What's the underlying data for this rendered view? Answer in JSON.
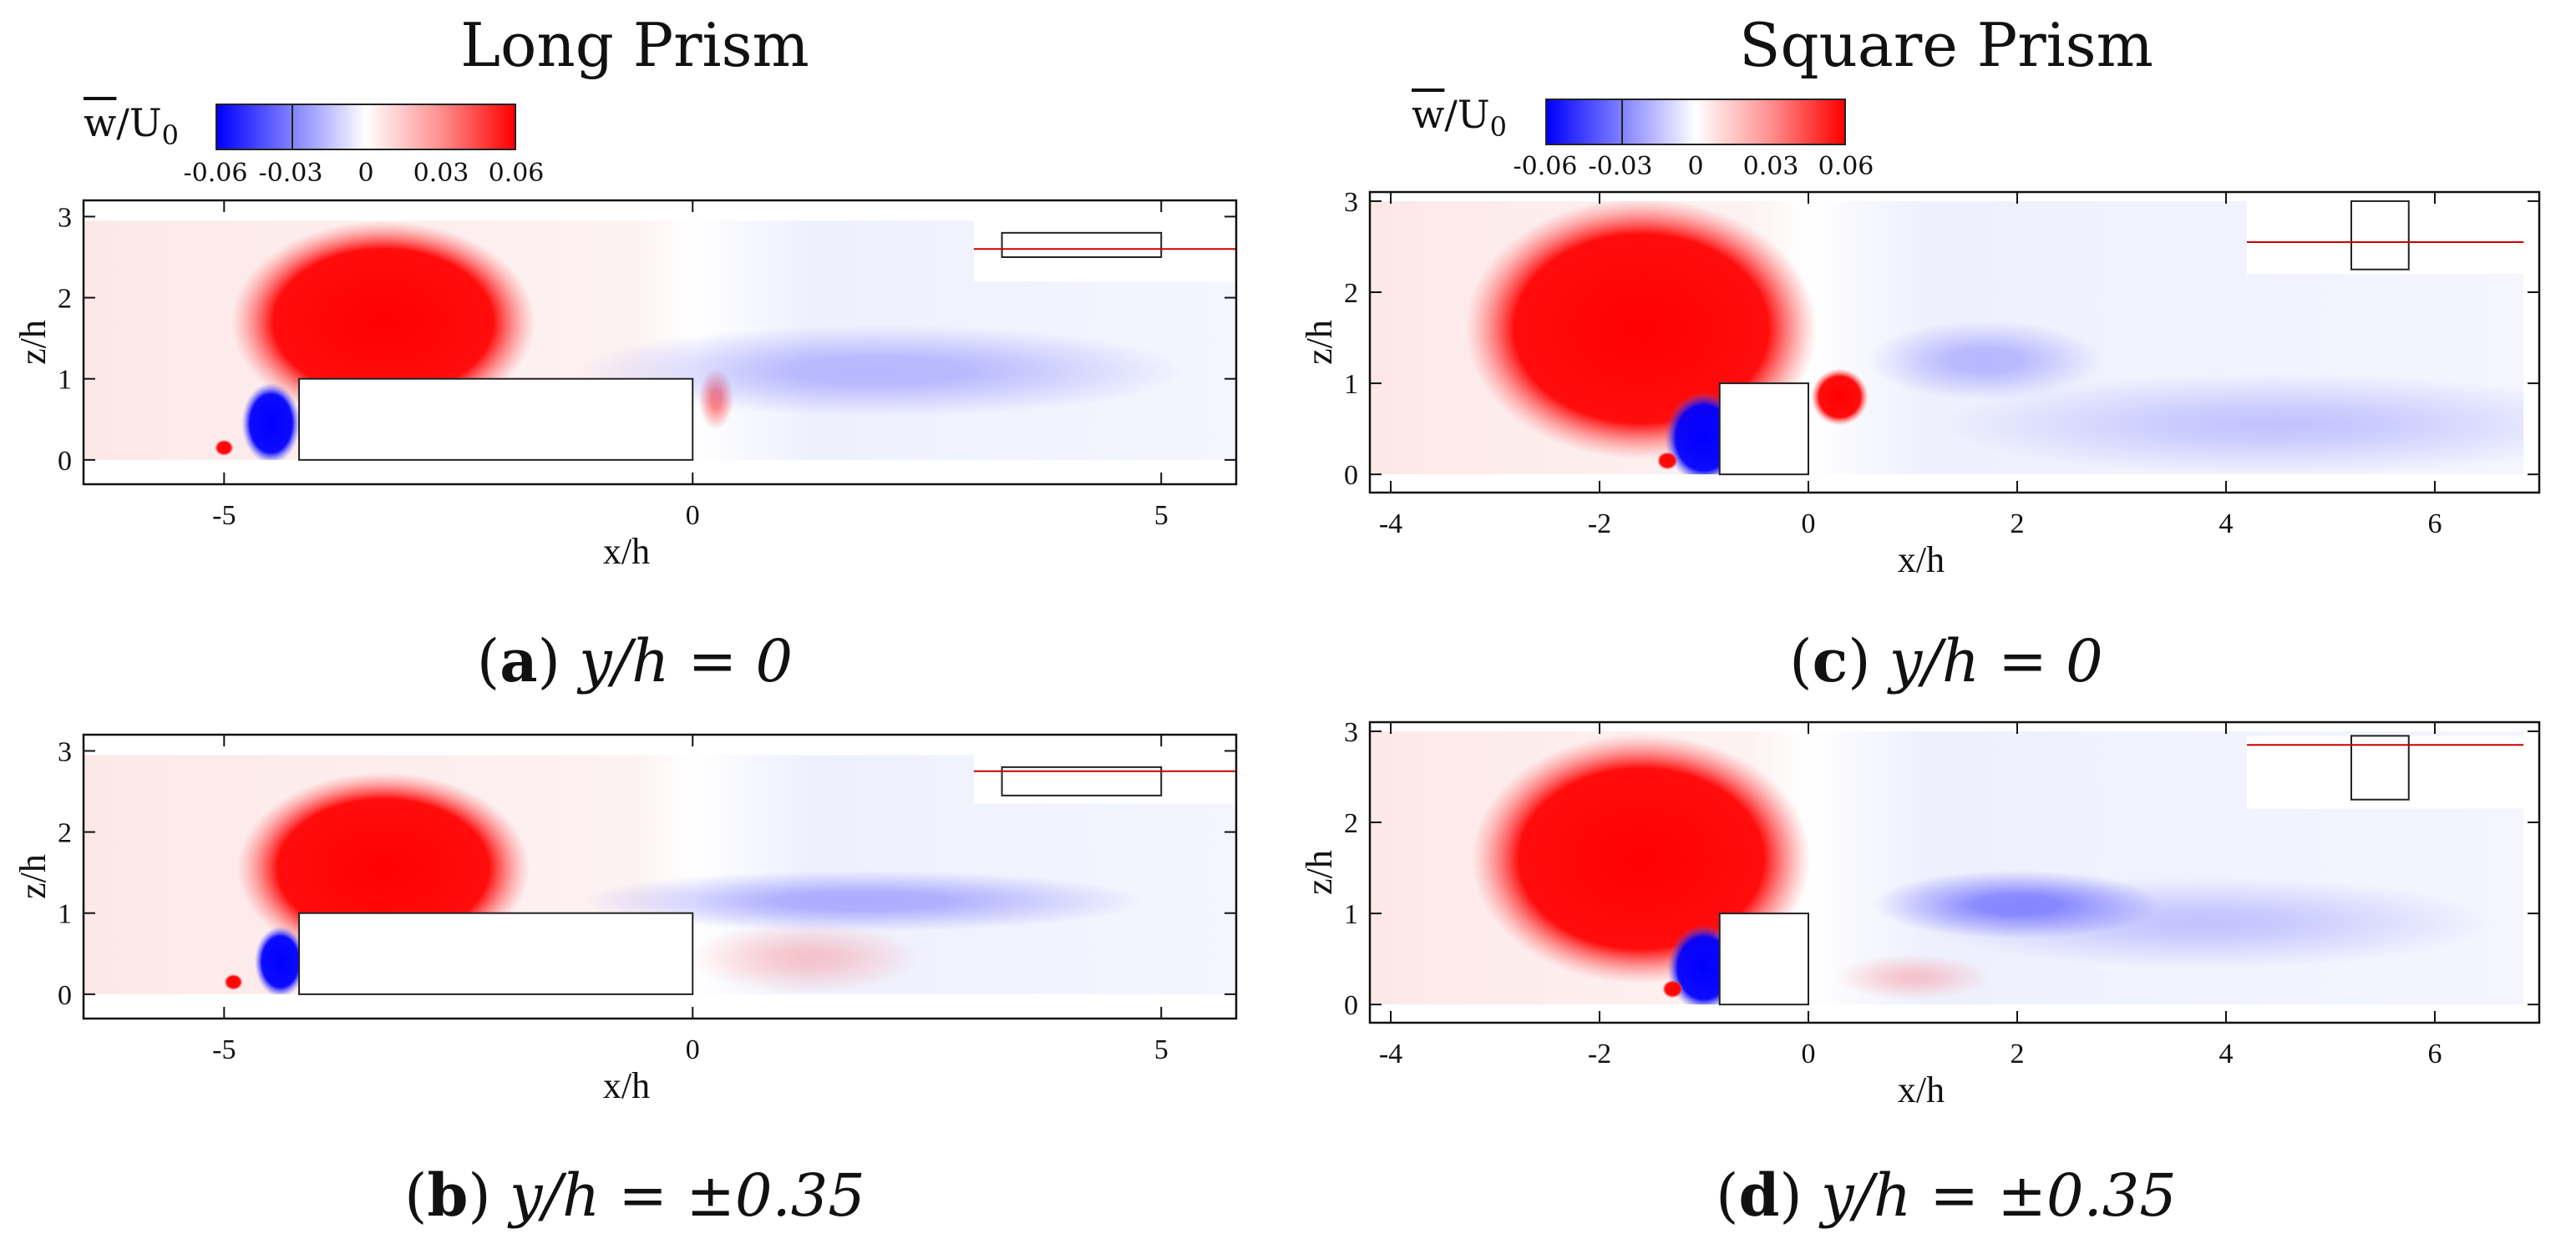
{
  "titles": {
    "left": "Long Prism",
    "right": "Square Prism"
  },
  "colorbar": {
    "label_w": "w",
    "label_slash": "/U",
    "label_sub": "0",
    "ticks": [
      "-0.06",
      "-0.03",
      "0",
      "0.03",
      "0.06"
    ],
    "tick_values": [
      -0.06,
      -0.03,
      0,
      0.03,
      0.06
    ],
    "colors": {
      "negative": "#0000ff",
      "zero": "#ffffff",
      "positive": "#ff0000"
    }
  },
  "captions": {
    "a": {
      "letter": "a",
      "text": "y/h = 0"
    },
    "b": {
      "letter": "b",
      "text": "y/h = ±0.35"
    },
    "c": {
      "letter": "c",
      "text": "y/h = 0"
    },
    "d": {
      "letter": "d",
      "text": "y/h = ±0.35"
    }
  },
  "chart_data": [
    {
      "id": "a",
      "type": "heatmap",
      "title": "Long Prism",
      "caption": "(a) y/h = 0",
      "xlabel": "x/h",
      "ylabel": "z/h",
      "variable": "w/U0",
      "xlim": [
        -6.5,
        5.8
      ],
      "ylim": [
        -0.3,
        3.2
      ],
      "xticks": [
        -5,
        0,
        5
      ],
      "xtick_labels": [
        "-5",
        "0",
        "5"
      ],
      "yticks": [
        0,
        1,
        2,
        3
      ],
      "ytick_labels": [
        "0",
        "1",
        "2",
        "3"
      ],
      "domain": {
        "x": [
          -6.5,
          5.8
        ],
        "z": [
          0,
          2.95
        ]
      },
      "prism": {
        "x": [
          -4.2,
          0
        ],
        "z": [
          0,
          1
        ]
      },
      "features": [
        {
          "sign": "positive",
          "strength": 0.06,
          "x": -3.3,
          "z": 1.7,
          "rx": 1.3,
          "rz": 1.0
        },
        {
          "sign": "negative",
          "strength": 0.06,
          "x": -4.5,
          "z": 0.45,
          "rx": 0.25,
          "rz": 0.4
        },
        {
          "sign": "positive",
          "strength": 0.06,
          "x": -5.0,
          "z": 0.15,
          "rx": 0.08,
          "rz": 0.08
        },
        {
          "sign": "positive",
          "strength": 0.05,
          "x": 0.25,
          "z": 0.75,
          "rx": 0.15,
          "rz": 0.3
        },
        {
          "sign": "negative",
          "strength": 0.025,
          "x": 2.0,
          "z": 1.1,
          "rx": 2.6,
          "rz": 0.45
        }
      ],
      "inset": {
        "x": [
          3.0,
          5.8
        ],
        "z": [
          2.2,
          2.95
        ],
        "prism_x": [
          3.3,
          5.0
        ],
        "prism_z": [
          2.5,
          2.8
        ],
        "line_z": 2.6
      }
    },
    {
      "id": "b",
      "type": "heatmap",
      "title": "Long Prism",
      "caption": "(b) y/h = ±0.35",
      "xlabel": "x/h",
      "ylabel": "z/h",
      "variable": "w/U0",
      "xlim": [
        -6.5,
        5.8
      ],
      "ylim": [
        -0.3,
        3.2
      ],
      "xticks": [
        -5,
        0,
        5
      ],
      "xtick_labels": [
        "-5",
        "0",
        "5"
      ],
      "yticks": [
        0,
        1,
        2,
        3
      ],
      "ytick_labels": [
        "0",
        "1",
        "2",
        "3"
      ],
      "domain": {
        "x": [
          -6.5,
          5.8
        ],
        "z": [
          0,
          2.95
        ]
      },
      "prism": {
        "x": [
          -4.2,
          0
        ],
        "z": [
          0,
          1
        ]
      },
      "features": [
        {
          "sign": "positive",
          "strength": 0.06,
          "x": -3.3,
          "z": 1.55,
          "rx": 1.25,
          "rz": 0.95
        },
        {
          "sign": "negative",
          "strength": 0.06,
          "x": -4.4,
          "z": 0.4,
          "rx": 0.22,
          "rz": 0.35
        },
        {
          "sign": "positive",
          "strength": 0.06,
          "x": -4.9,
          "z": 0.15,
          "rx": 0.08,
          "rz": 0.08
        },
        {
          "sign": "negative",
          "strength": 0.03,
          "x": 1.8,
          "z": 1.15,
          "rx": 2.4,
          "rz": 0.3
        },
        {
          "sign": "positive",
          "strength": 0.012,
          "x": 1.2,
          "z": 0.45,
          "rx": 1.0,
          "rz": 0.35
        }
      ],
      "inset": {
        "x": [
          3.0,
          5.8
        ],
        "z": [
          2.35,
          2.95
        ],
        "prism_x": [
          3.3,
          5.0
        ],
        "prism_z": [
          2.45,
          2.8
        ],
        "line_z": 2.75
      }
    },
    {
      "id": "c",
      "type": "heatmap",
      "title": "Square Prism",
      "caption": "(c) y/h = 0",
      "xlabel": "x/h",
      "ylabel": "z/h",
      "variable": "w/U0",
      "xlim": [
        -4.2,
        7.0
      ],
      "ylim": [
        -0.2,
        3.1
      ],
      "xticks": [
        -4,
        -2,
        0,
        2,
        4,
        6
      ],
      "xtick_labels": [
        "-4",
        "-2",
        "0",
        "2",
        "4",
        "6"
      ],
      "yticks": [
        0,
        1,
        2,
        3
      ],
      "ytick_labels": [
        "0",
        "1",
        "2",
        "3"
      ],
      "domain": {
        "x": [
          -4.2,
          6.85
        ],
        "z": [
          0,
          3.0
        ]
      },
      "prism": {
        "x": [
          -0.85,
          0
        ],
        "z": [
          0,
          1
        ]
      },
      "features": [
        {
          "sign": "positive",
          "strength": 0.06,
          "x": -1.6,
          "z": 1.6,
          "rx": 1.35,
          "rz": 1.15
        },
        {
          "sign": "negative",
          "strength": 0.06,
          "x": -1.0,
          "z": 0.4,
          "rx": 0.3,
          "rz": 0.4
        },
        {
          "sign": "positive",
          "strength": 0.06,
          "x": -1.35,
          "z": 0.15,
          "rx": 0.08,
          "rz": 0.08
        },
        {
          "sign": "positive",
          "strength": 0.06,
          "x": 0.3,
          "z": 0.85,
          "rx": 0.22,
          "rz": 0.25
        },
        {
          "sign": "negative",
          "strength": 0.025,
          "x": 1.7,
          "z": 1.25,
          "rx": 0.9,
          "rz": 0.35
        },
        {
          "sign": "negative",
          "strength": 0.012,
          "x": 4.5,
          "z": 0.55,
          "rx": 2.6,
          "rz": 0.45
        }
      ],
      "inset": {
        "x": [
          4.2,
          6.85
        ],
        "z": [
          2.2,
          3.0
        ],
        "prism_x": [
          5.2,
          5.75
        ],
        "prism_z": [
          2.25,
          3.0
        ],
        "line_z": 2.55
      }
    },
    {
      "id": "d",
      "type": "heatmap",
      "title": "Square Prism",
      "caption": "(d) y/h = ±0.35",
      "xlabel": "x/h",
      "ylabel": "z/h",
      "variable": "w/U0",
      "xlim": [
        -4.2,
        7.0
      ],
      "ylim": [
        -0.2,
        3.1
      ],
      "xticks": [
        -4,
        -2,
        0,
        2,
        4,
        6
      ],
      "xtick_labels": [
        "-4",
        "-2",
        "0",
        "2",
        "4",
        "6"
      ],
      "yticks": [
        0,
        1,
        2,
        3
      ],
      "ytick_labels": [
        "0",
        "1",
        "2",
        "3"
      ],
      "domain": {
        "x": [
          -4.2,
          6.85
        ],
        "z": [
          0,
          3.0
        ]
      },
      "prism": {
        "x": [
          -0.85,
          0
        ],
        "z": [
          0,
          1
        ]
      },
      "features": [
        {
          "sign": "positive",
          "strength": 0.06,
          "x": -1.6,
          "z": 1.6,
          "rx": 1.3,
          "rz": 1.1
        },
        {
          "sign": "negative",
          "strength": 0.06,
          "x": -1.0,
          "z": 0.4,
          "rx": 0.28,
          "rz": 0.38
        },
        {
          "sign": "positive",
          "strength": 0.06,
          "x": -1.3,
          "z": 0.17,
          "rx": 0.08,
          "rz": 0.08
        },
        {
          "sign": "negative",
          "strength": 0.045,
          "x": 2.0,
          "z": 1.1,
          "rx": 1.1,
          "rz": 0.3
        },
        {
          "sign": "negative",
          "strength": 0.012,
          "x": 3.8,
          "z": 0.9,
          "rx": 2.2,
          "rz": 0.4
        },
        {
          "sign": "positive",
          "strength": 0.012,
          "x": 1.0,
          "z": 0.3,
          "rx": 0.6,
          "rz": 0.2
        }
      ],
      "inset": {
        "x": [
          4.2,
          6.85
        ],
        "z": [
          2.15,
          2.95
        ],
        "prism_x": [
          5.2,
          5.75
        ],
        "prism_z": [
          2.25,
          2.95
        ],
        "line_z": 2.85
      }
    }
  ]
}
